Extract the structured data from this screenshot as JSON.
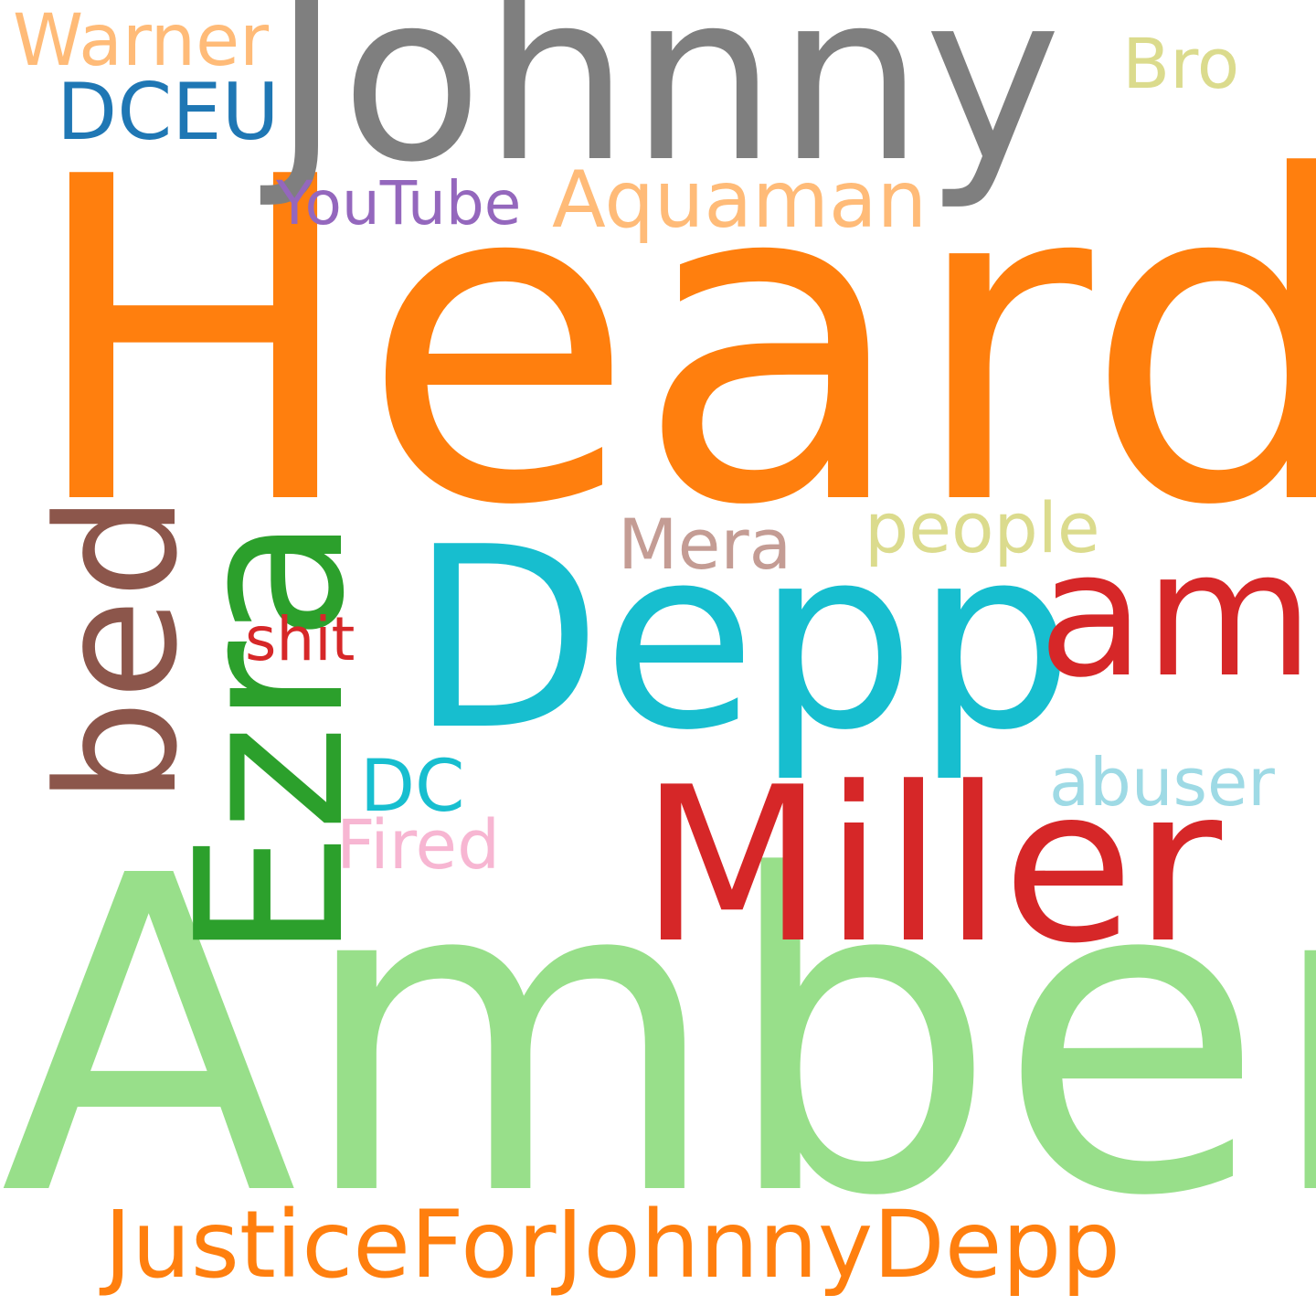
{
  "words": [
    {
      "key": "heard",
      "text": "Heard",
      "color": "#ff7f0e"
    },
    {
      "key": "amber",
      "text": "Amber",
      "color": "#98df8a"
    },
    {
      "key": "johnny",
      "text": "Johnny",
      "color": "#7f7f7f"
    },
    {
      "key": "depp",
      "text": "Depp",
      "color": "#17becf"
    },
    {
      "key": "miller",
      "text": "Miller",
      "color": "#d62728"
    },
    {
      "key": "ezra",
      "text": "Ezra",
      "color": "#2ca02c"
    },
    {
      "key": "amp",
      "text": "amp",
      "color": "#d62728"
    },
    {
      "key": "bed",
      "text": "bed",
      "color": "#8c564b"
    },
    {
      "key": "justice",
      "text": "JusticeForJohnnyDepp",
      "color": "#ff7f0e"
    },
    {
      "key": "aquaman",
      "text": "Aquaman",
      "color": "#ffbb78"
    },
    {
      "key": "warner",
      "text": "Warner",
      "color": "#ffbb78"
    },
    {
      "key": "dceu",
      "text": "DCEU",
      "color": "#1f77b4"
    },
    {
      "key": "bro",
      "text": "Bro",
      "color": "#dbdb8d"
    },
    {
      "key": "youtube",
      "text": "YouTube",
      "color": "#9467bd"
    },
    {
      "key": "people",
      "text": "people",
      "color": "#dbdb8d"
    },
    {
      "key": "mera",
      "text": "Mera",
      "color": "#c49c94"
    },
    {
      "key": "shit",
      "text": "shit",
      "color": "#d62728"
    },
    {
      "key": "dc",
      "text": "DC",
      "color": "#17becf"
    },
    {
      "key": "abuser",
      "text": "abuser",
      "color": "#9edae5"
    },
    {
      "key": "fired",
      "text": "Fired",
      "color": "#f7b6d2"
    }
  ]
}
